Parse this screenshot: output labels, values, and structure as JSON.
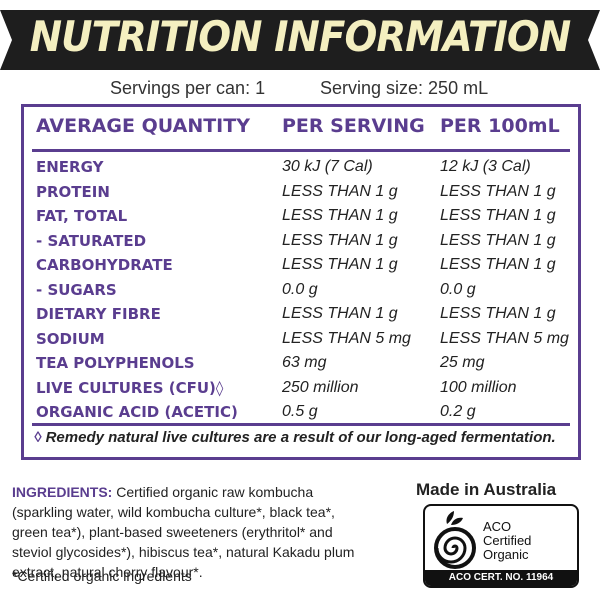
{
  "banner": {
    "title": "NUTRITION INFORMATION"
  },
  "servings": {
    "per_can": "Servings per can: 1",
    "size": "Serving size: 250 mL"
  },
  "table": {
    "headers": [
      "AVERAGE QUANTITY",
      "PER SERVING",
      "PER 100mL"
    ],
    "rows": [
      [
        "ENERGY",
        "30 kJ (7 Cal)",
        "12 kJ (3 Cal)"
      ],
      [
        "PROTEIN",
        "LESS THAN 1 g",
        "LESS THAN 1 g"
      ],
      [
        "FAT, TOTAL",
        "LESS THAN 1 g",
        "LESS THAN 1 g"
      ],
      [
        "- SATURATED",
        "LESS THAN 1 g",
        "LESS THAN 1 g"
      ],
      [
        "CARBOHYDRATE",
        "LESS THAN 1 g",
        "LESS THAN 1 g"
      ],
      [
        "- SUGARS",
        "0.0 g",
        "0.0 g"
      ],
      [
        "DIETARY FIBRE",
        "LESS THAN 1 g",
        "LESS THAN 1 g"
      ],
      [
        "SODIUM",
        "LESS THAN 5 mg",
        "LESS THAN 5 mg"
      ],
      [
        "TEA POLYPHENOLS",
        "63 mg",
        "25 mg"
      ],
      [
        "LIVE CULTURES (CFU)◊",
        "250 million",
        "100 million"
      ],
      [
        "ORGANIC ACID (ACETIC)",
        "0.5 g",
        "0.2 g"
      ]
    ],
    "note_symbol": "◊",
    "note": "Remedy natural live cultures are a result of our long-aged fermentation."
  },
  "ingredients": {
    "label": "INGREDIENTS:",
    "text": "Certified organic raw kombucha (sparkling water, wild kombucha culture*, black tea*, green tea*), plant-based sweeteners (erythritol* and steviol glycosides*), hibiscus tea*, natural Kakadu plum extract, natural cherry flavour*."
  },
  "footnote": "*Certified organic ingredients",
  "origin": "Made in Australia",
  "certification": {
    "line1": "ACO",
    "line2": "Certified",
    "line3": "Organic",
    "cert_no": "ACO CERT. NO. 11964",
    "icon": "aco-leaf-spiral-logo"
  },
  "colors": {
    "accent": "#5a3d8f",
    "banner_bg": "#1e1e1e",
    "banner_text": "#f4efc0"
  }
}
